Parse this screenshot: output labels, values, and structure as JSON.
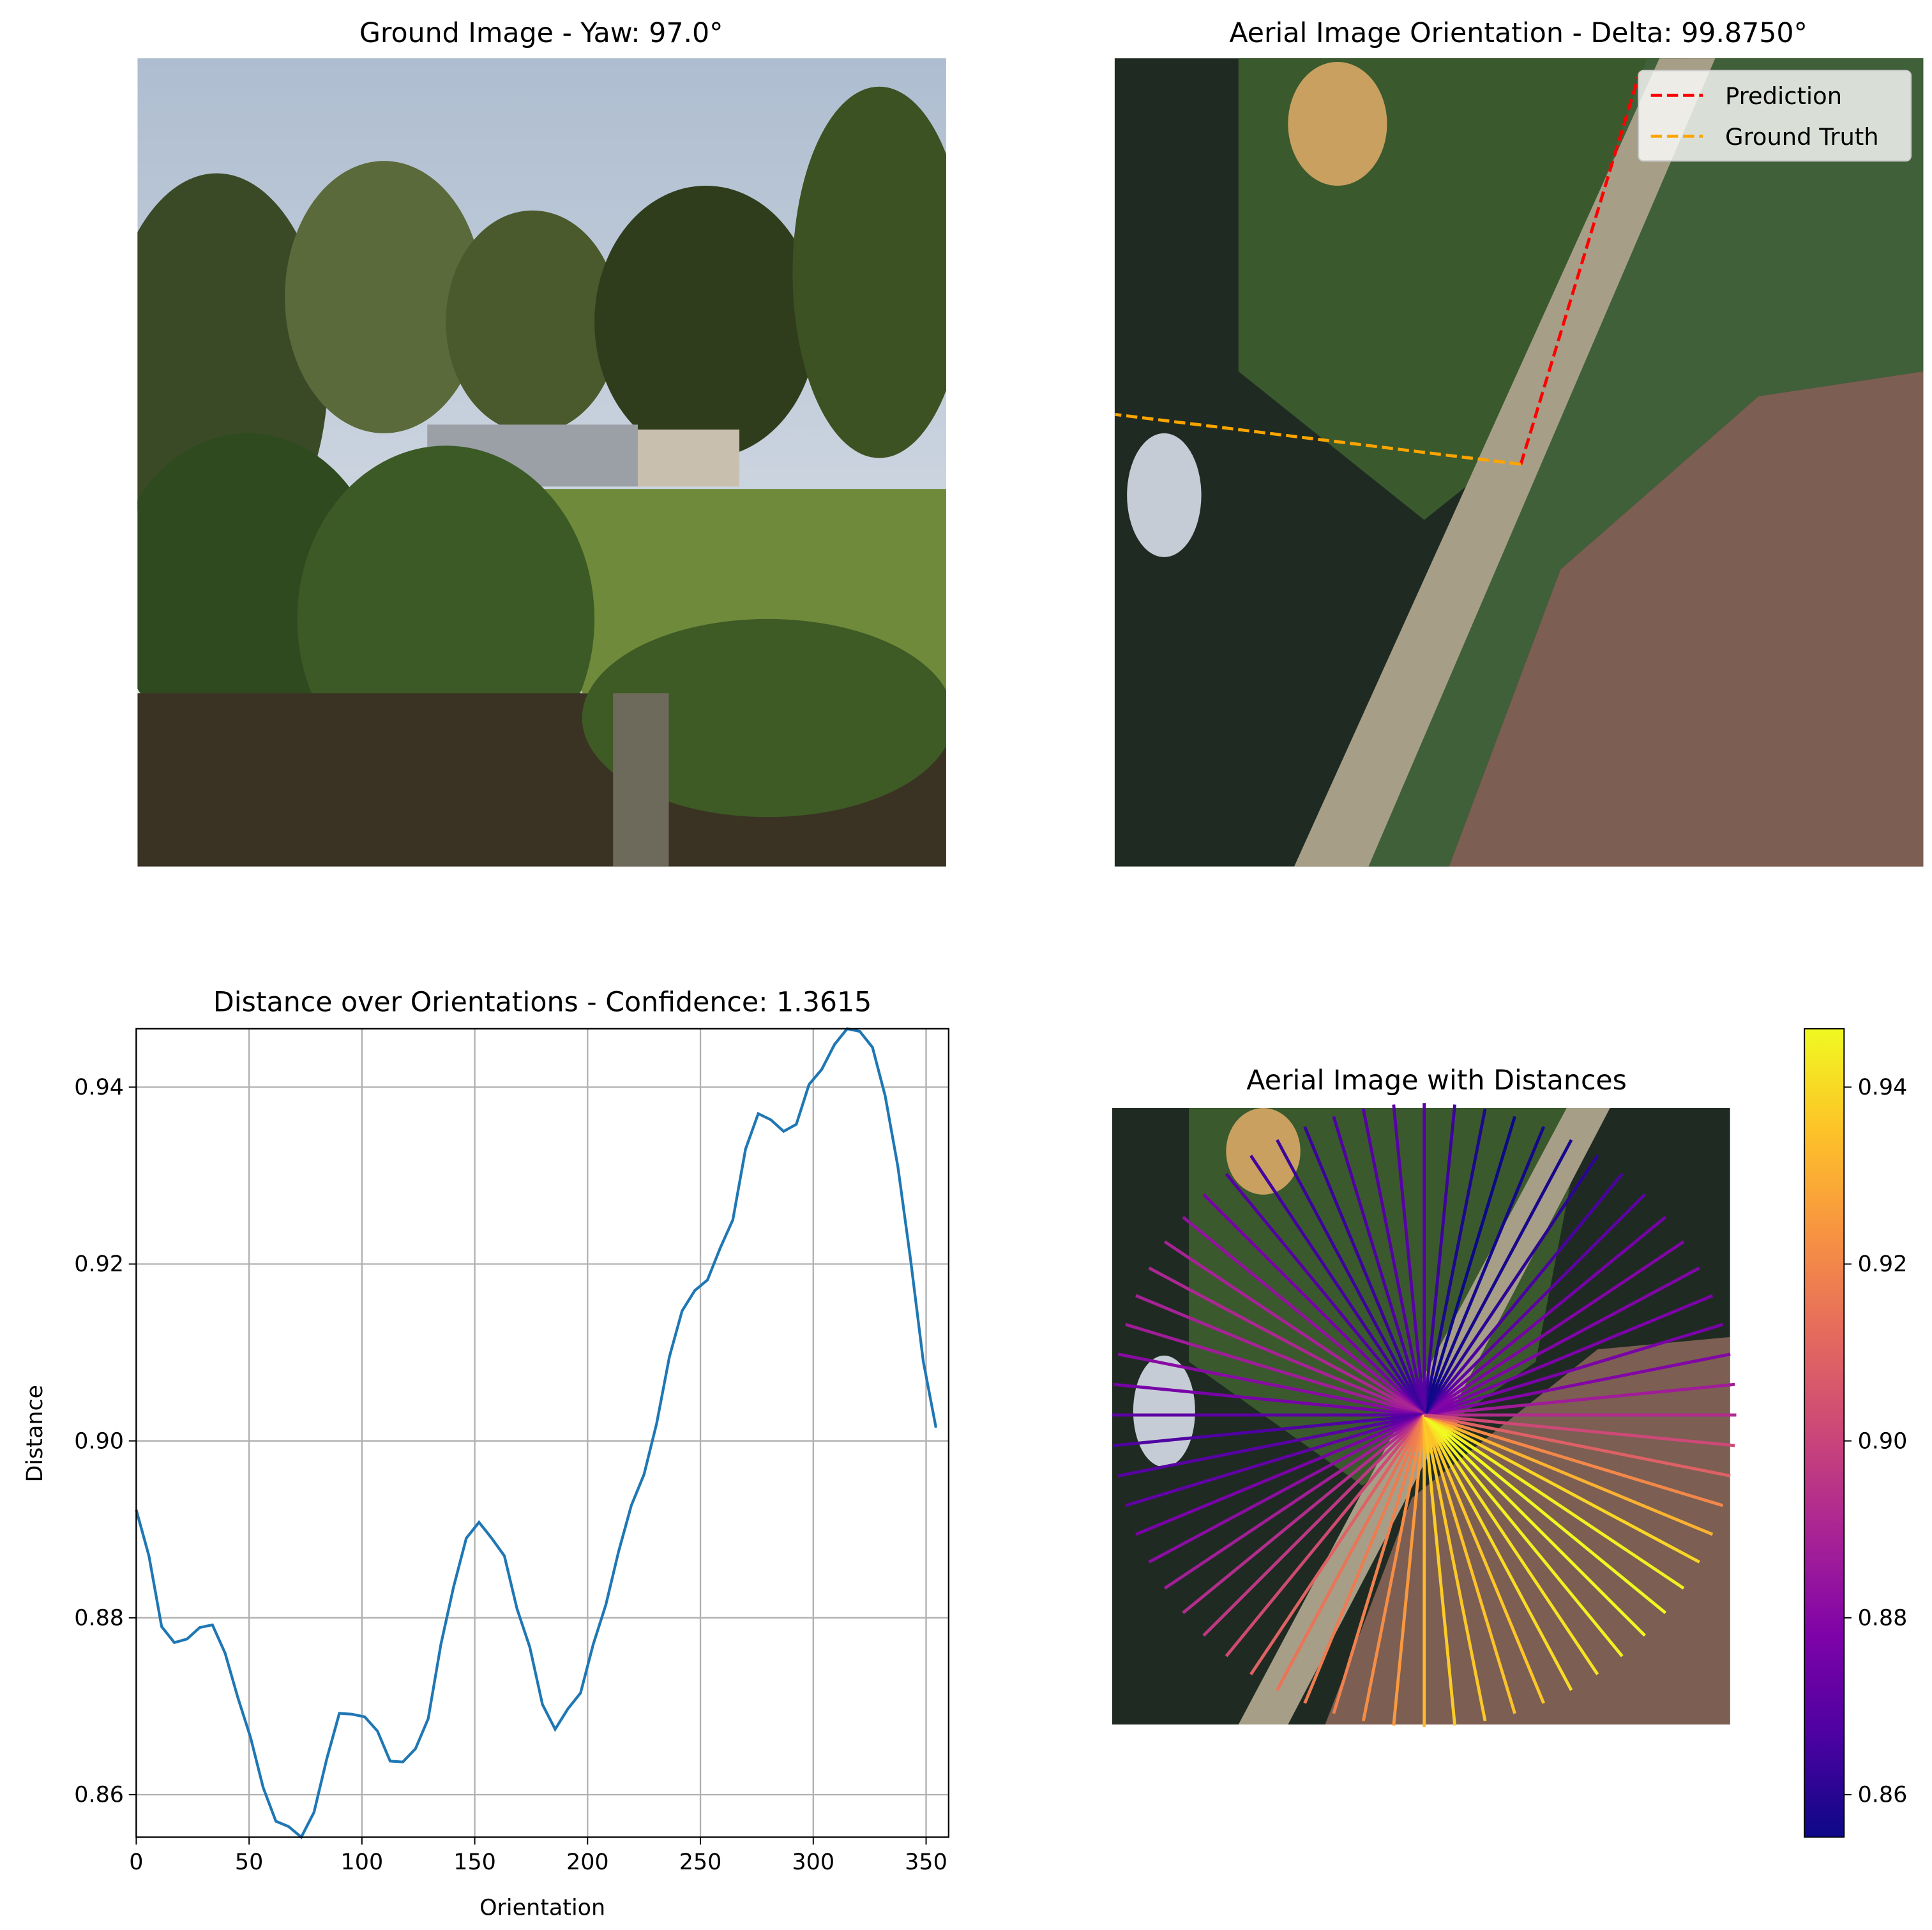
{
  "chart_data": [
    {
      "type": "image",
      "title": "Ground Image - Yaw: 97.0°"
    },
    {
      "type": "image",
      "title": "Aerial Image Orientation - Delta: 99.8750°",
      "legend": "upper right",
      "series": [
        {
          "name": "Prediction",
          "color": "#ff0000",
          "angle": 73.125
        },
        {
          "name": "Ground Truth",
          "color": "#ffa500",
          "angle": 173.0
        }
      ]
    },
    {
      "type": "line",
      "title": "Distance over Orientations - Confidence: 1.3615",
      "x_label": "Orientation",
      "y_label": "Distance",
      "x": [
        0,
        5.625,
        11.25,
        16.875,
        22.5,
        28.125,
        33.75,
        39.375,
        45,
        50.625,
        56.25,
        61.875,
        67.5,
        73.125,
        78.75,
        84.375,
        90,
        95.625,
        101.25,
        106.875,
        112.5,
        118.125,
        123.75,
        129.375,
        135,
        140.625,
        146.25,
        151.875,
        157.5,
        163.125,
        168.75,
        174.375,
        180,
        185.625,
        191.25,
        196.875,
        202.5,
        208.125,
        213.75,
        219.375,
        225,
        230.625,
        236.25,
        241.875,
        247.5,
        253.125,
        258.75,
        264.375,
        270,
        275.625,
        281.25,
        286.875,
        292.5,
        298.125,
        303.75,
        309.375,
        315,
        320.625,
        326.25,
        331.875,
        337.5,
        343.125,
        348.75,
        354.375
      ],
      "series": [
        {
          "color": "#1f77b4",
          "values": [
            0.8922,
            0.887,
            0.879,
            0.8772,
            0.8776,
            0.8789,
            0.8792,
            0.876,
            0.871,
            0.8665,
            0.8608,
            0.857,
            0.8564,
            0.8552,
            0.858,
            0.864,
            0.8692,
            0.8691,
            0.8688,
            0.8672,
            0.8638,
            0.8637,
            0.8652,
            0.8686,
            0.877,
            0.8835,
            0.889,
            0.8908,
            0.889,
            0.887,
            0.881,
            0.8767,
            0.8702,
            0.8674,
            0.8697,
            0.8715,
            0.877,
            0.8815,
            0.8875,
            0.8927,
            0.8962,
            0.902,
            0.9095,
            0.9147,
            0.917,
            0.9182,
            0.9218,
            0.925,
            0.933,
            0.937,
            0.9363,
            0.935,
            0.9358,
            0.9403,
            0.942,
            0.9448,
            0.9466,
            0.9463,
            0.9445,
            0.939,
            0.931,
            0.9205,
            0.909,
            0.9015
          ]
        }
      ],
      "xlim": [
        0,
        360
      ],
      "ylim": [
        0.8552,
        0.9466
      ],
      "xticks": [
        0,
        50,
        100,
        150,
        200,
        250,
        300,
        350
      ],
      "yticks": [
        0.86,
        0.88,
        {
          "value": 0.9,
          "label": "0.90"
        },
        0.92,
        0.94
      ],
      "grid": true
    },
    {
      "type": "radial",
      "title": "Aerial Image with Distances",
      "colormap": "plasma",
      "clim": [
        0.8552,
        0.9466
      ],
      "cticks": [
        0.86,
        0.88,
        {
          "value": 0.9,
          "label": "0.90"
        },
        0.92,
        0.94
      ]
    }
  ]
}
